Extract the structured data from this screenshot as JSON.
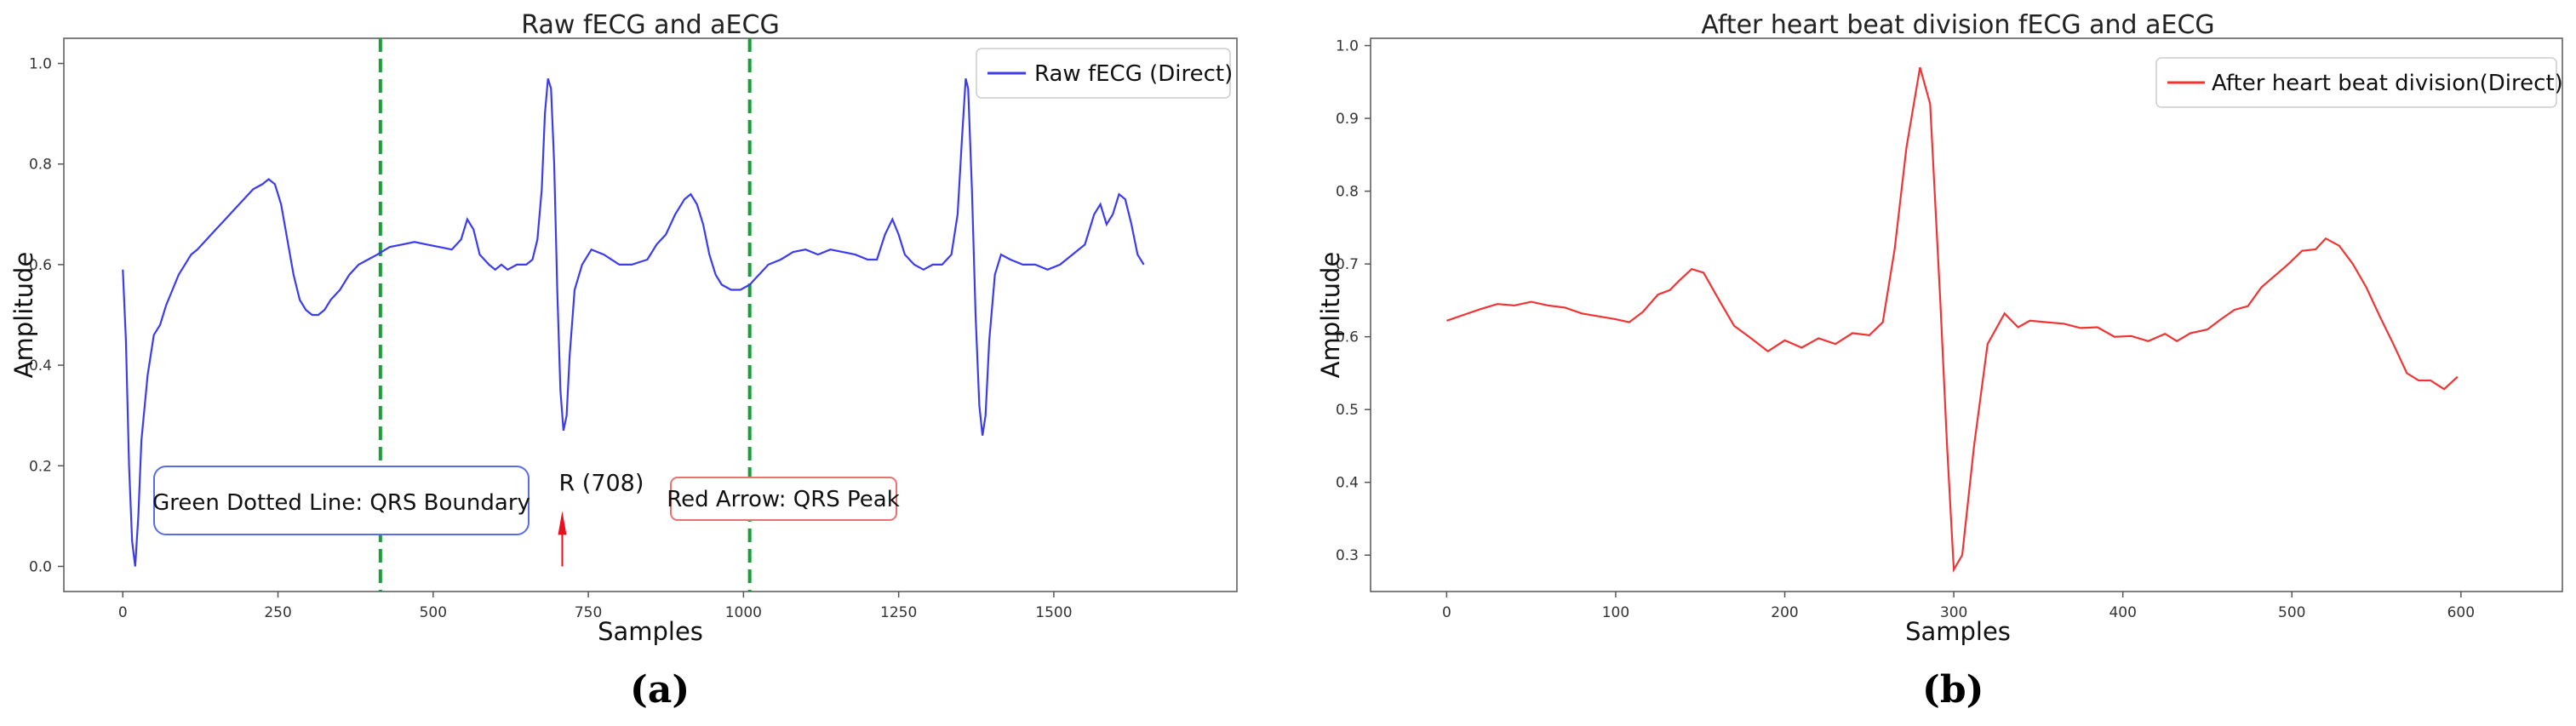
{
  "chart_data": [
    {
      "type": "line",
      "title": "Raw fECG and aECG",
      "xlabel": "Samples",
      "ylabel": "Amplitude",
      "xlim": [
        -95,
        1795
      ],
      "ylim": [
        -0.05,
        1.05
      ],
      "xticks": [
        0,
        250,
        500,
        750,
        1000,
        1250,
        1500
      ],
      "yticks": [
        0.0,
        0.2,
        0.4,
        0.6,
        0.8,
        1.0
      ],
      "legend_position": "top-right",
      "grid": false,
      "series": [
        {
          "name": "Raw fECG (Direct)",
          "color": "#3b3bf0",
          "points": [
            [
              0,
              0.59
            ],
            [
              5,
              0.45
            ],
            [
              10,
              0.2
            ],
            [
              15,
              0.05
            ],
            [
              20,
              0.0
            ],
            [
              25,
              0.1
            ],
            [
              30,
              0.25
            ],
            [
              40,
              0.38
            ],
            [
              50,
              0.46
            ],
            [
              60,
              0.48
            ],
            [
              70,
              0.52
            ],
            [
              80,
              0.55
            ],
            [
              90,
              0.58
            ],
            [
              100,
              0.6
            ],
            [
              110,
              0.62
            ],
            [
              120,
              0.63
            ],
            [
              135,
              0.65
            ],
            [
              150,
              0.67
            ],
            [
              165,
              0.69
            ],
            [
              180,
              0.71
            ],
            [
              195,
              0.73
            ],
            [
              210,
              0.75
            ],
            [
              225,
              0.76
            ],
            [
              235,
              0.77
            ],
            [
              245,
              0.76
            ],
            [
              255,
              0.72
            ],
            [
              265,
              0.65
            ],
            [
              275,
              0.58
            ],
            [
              285,
              0.53
            ],
            [
              295,
              0.51
            ],
            [
              305,
              0.5
            ],
            [
              315,
              0.5
            ],
            [
              325,
              0.51
            ],
            [
              335,
              0.53
            ],
            [
              350,
              0.55
            ],
            [
              365,
              0.58
            ],
            [
              380,
              0.6
            ],
            [
              395,
              0.61
            ],
            [
              410,
              0.62
            ],
            [
              430,
              0.635
            ],
            [
              450,
              0.64
            ],
            [
              470,
              0.645
            ],
            [
              490,
              0.64
            ],
            [
              510,
              0.635
            ],
            [
              530,
              0.63
            ],
            [
              545,
              0.65
            ],
            [
              555,
              0.69
            ],
            [
              565,
              0.67
            ],
            [
              575,
              0.62
            ],
            [
              590,
              0.6
            ],
            [
              600,
              0.59
            ],
            [
              610,
              0.6
            ],
            [
              620,
              0.59
            ],
            [
              635,
              0.6
            ],
            [
              650,
              0.6
            ],
            [
              660,
              0.61
            ],
            [
              668,
              0.65
            ],
            [
              675,
              0.75
            ],
            [
              680,
              0.9
            ],
            [
              685,
              0.97
            ],
            [
              690,
              0.95
            ],
            [
              695,
              0.8
            ],
            [
              700,
              0.55
            ],
            [
              705,
              0.35
            ],
            [
              710,
              0.27
            ],
            [
              715,
              0.3
            ],
            [
              720,
              0.42
            ],
            [
              728,
              0.55
            ],
            [
              740,
              0.6
            ],
            [
              755,
              0.63
            ],
            [
              775,
              0.62
            ],
            [
              800,
              0.6
            ],
            [
              820,
              0.6
            ],
            [
              845,
              0.61
            ],
            [
              860,
              0.64
            ],
            [
              875,
              0.66
            ],
            [
              890,
              0.7
            ],
            [
              905,
              0.73
            ],
            [
              915,
              0.74
            ],
            [
              925,
              0.72
            ],
            [
              935,
              0.68
            ],
            [
              945,
              0.62
            ],
            [
              955,
              0.58
            ],
            [
              965,
              0.56
            ],
            [
              980,
              0.55
            ],
            [
              995,
              0.55
            ],
            [
              1010,
              0.56
            ],
            [
              1025,
              0.58
            ],
            [
              1040,
              0.6
            ],
            [
              1060,
              0.61
            ],
            [
              1080,
              0.625
            ],
            [
              1100,
              0.63
            ],
            [
              1120,
              0.62
            ],
            [
              1140,
              0.63
            ],
            [
              1160,
              0.625
            ],
            [
              1180,
              0.62
            ],
            [
              1200,
              0.61
            ],
            [
              1215,
              0.61
            ],
            [
              1228,
              0.66
            ],
            [
              1240,
              0.69
            ],
            [
              1250,
              0.66
            ],
            [
              1260,
              0.62
            ],
            [
              1275,
              0.6
            ],
            [
              1290,
              0.59
            ],
            [
              1305,
              0.6
            ],
            [
              1320,
              0.6
            ],
            [
              1335,
              0.62
            ],
            [
              1345,
              0.7
            ],
            [
              1352,
              0.85
            ],
            [
              1358,
              0.97
            ],
            [
              1362,
              0.95
            ],
            [
              1368,
              0.75
            ],
            [
              1374,
              0.5
            ],
            [
              1380,
              0.32
            ],
            [
              1385,
              0.26
            ],
            [
              1390,
              0.3
            ],
            [
              1396,
              0.45
            ],
            [
              1405,
              0.58
            ],
            [
              1415,
              0.62
            ],
            [
              1430,
              0.61
            ],
            [
              1450,
              0.6
            ],
            [
              1470,
              0.6
            ],
            [
              1490,
              0.59
            ],
            [
              1510,
              0.6
            ],
            [
              1530,
              0.62
            ],
            [
              1550,
              0.64
            ],
            [
              1565,
              0.7
            ],
            [
              1575,
              0.72
            ],
            [
              1585,
              0.68
            ],
            [
              1595,
              0.7
            ],
            [
              1605,
              0.74
            ],
            [
              1615,
              0.73
            ],
            [
              1625,
              0.68
            ],
            [
              1635,
              0.62
            ],
            [
              1645,
              0.6
            ]
          ]
        }
      ],
      "annotations": {
        "vlines": [
          415,
          1010
        ],
        "vline_color": "#1a9e3a",
        "arrow": {
          "x": 708,
          "y_start": 0.0,
          "y_end": 0.1,
          "label": "R (708)",
          "color": "#e8101f"
        },
        "boxes": [
          {
            "text": "Green Dotted Line: QRS Boundary",
            "border_color": "#5a6be6"
          },
          {
            "text": "Red Arrow: QRS Peak",
            "border_color": "#e87272"
          }
        ]
      },
      "panel_label": "(a)"
    },
    {
      "type": "line",
      "title": "After heart beat division fECG and aECG",
      "xlabel": "Samples",
      "ylabel": "Amplitude",
      "xlim": [
        -45,
        660
      ],
      "ylim": [
        0.25,
        1.01
      ],
      "xticks": [
        0,
        100,
        200,
        300,
        400,
        500,
        600
      ],
      "yticks": [
        0.3,
        0.4,
        0.5,
        0.6,
        0.7,
        0.8,
        0.9,
        1.0
      ],
      "legend_position": "top-right",
      "grid": false,
      "series": [
        {
          "name": "After heart beat division(Direct)",
          "color": "#f03434",
          "points": [
            [
              0,
              0.622
            ],
            [
              10,
              0.63
            ],
            [
              20,
              0.638
            ],
            [
              30,
              0.645
            ],
            [
              40,
              0.643
            ],
            [
              50,
              0.648
            ],
            [
              60,
              0.643
            ],
            [
              70,
              0.64
            ],
            [
              80,
              0.632
            ],
            [
              90,
              0.628
            ],
            [
              100,
              0.624
            ],
            [
              108,
              0.62
            ],
            [
              116,
              0.634
            ],
            [
              125,
              0.658
            ],
            [
              132,
              0.664
            ],
            [
              138,
              0.678
            ],
            [
              145,
              0.693
            ],
            [
              152,
              0.688
            ],
            [
              160,
              0.655
            ],
            [
              170,
              0.615
            ],
            [
              180,
              0.598
            ],
            [
              190,
              0.58
            ],
            [
              200,
              0.595
            ],
            [
              210,
              0.585
            ],
            [
              220,
              0.598
            ],
            [
              230,
              0.59
            ],
            [
              240,
              0.605
            ],
            [
              250,
              0.602
            ],
            [
              258,
              0.62
            ],
            [
              265,
              0.72
            ],
            [
              272,
              0.86
            ],
            [
              280,
              0.97
            ],
            [
              286,
              0.92
            ],
            [
              292,
              0.65
            ],
            [
              296,
              0.45
            ],
            [
              300,
              0.28
            ],
            [
              305,
              0.3
            ],
            [
              312,
              0.45
            ],
            [
              320,
              0.59
            ],
            [
              330,
              0.632
            ],
            [
              338,
              0.613
            ],
            [
              345,
              0.622
            ],
            [
              355,
              0.62
            ],
            [
              365,
              0.618
            ],
            [
              375,
              0.612
            ],
            [
              385,
              0.613
            ],
            [
              395,
              0.6
            ],
            [
              405,
              0.601
            ],
            [
              415,
              0.594
            ],
            [
              425,
              0.604
            ],
            [
              432,
              0.594
            ],
            [
              440,
              0.605
            ],
            [
              450,
              0.61
            ],
            [
              458,
              0.624
            ],
            [
              466,
              0.637
            ],
            [
              474,
              0.642
            ],
            [
              482,
              0.668
            ],
            [
              490,
              0.684
            ],
            [
              498,
              0.7
            ],
            [
              506,
              0.718
            ],
            [
              514,
              0.72
            ],
            [
              520,
              0.735
            ],
            [
              528,
              0.725
            ],
            [
              536,
              0.7
            ],
            [
              544,
              0.668
            ],
            [
              552,
              0.628
            ],
            [
              560,
              0.59
            ],
            [
              568,
              0.55
            ],
            [
              575,
              0.54
            ],
            [
              582,
              0.54
            ],
            [
              590,
              0.528
            ],
            [
              598,
              0.545
            ]
          ]
        }
      ],
      "panel_label": "(b)"
    }
  ]
}
